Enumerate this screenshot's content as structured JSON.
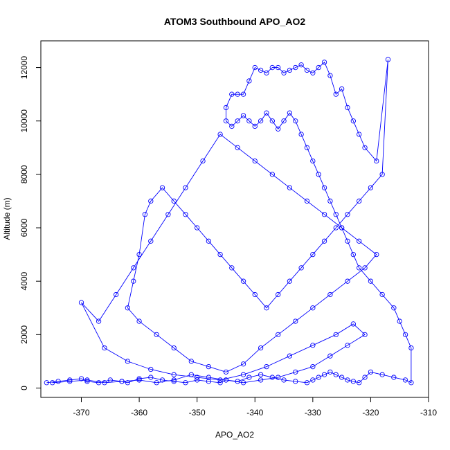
{
  "chart_data": {
    "type": "line",
    "title": "ATOM3 Southbound APO_AO2",
    "xlabel": "APO_AO2",
    "ylabel": "Altitude (m)",
    "xlim": [
      -377,
      -310
    ],
    "ylim": [
      -350,
      13000
    ],
    "x_ticks": [
      -370,
      -360,
      -350,
      -340,
      -330,
      -320,
      -310
    ],
    "y_ticks": [
      0,
      2000,
      4000,
      6000,
      8000,
      10000,
      12000
    ],
    "grid": false,
    "markers": "open-circle",
    "series": [
      {
        "color": "#0000ff",
        "x": [
          -376,
          -374,
          -372,
          -370,
          -369,
          -367,
          -365,
          -363,
          -362,
          -360,
          -358,
          -356,
          -354,
          -352,
          -350,
          -348,
          -346,
          -345,
          -343,
          -341,
          -339,
          -337,
          -335,
          -333,
          -331,
          -330,
          -329,
          -328,
          -327,
          -326,
          -325,
          -324,
          -323,
          -322,
          -321,
          -320,
          -318,
          -316,
          -314,
          -313,
          -313,
          -314,
          -315,
          -316,
          -318,
          -320,
          -322,
          -323,
          -324,
          -325,
          -326,
          -327,
          -328,
          -329,
          -330,
          -331,
          -332,
          -333,
          -334,
          -335,
          -336,
          -337,
          -338,
          -339,
          -340,
          -341,
          -342,
          -343,
          -344,
          -345,
          -345,
          -344,
          -343,
          -342,
          -341,
          -340,
          -339,
          -338,
          -337,
          -336,
          -335,
          -334,
          -333,
          -332,
          -331,
          -330,
          -329,
          -328,
          -327,
          -326,
          -325,
          -324,
          -323,
          -322,
          -321,
          -319,
          -317,
          -318,
          -320,
          -322,
          -324,
          -326,
          -328,
          -330,
          -332,
          -334,
          -336,
          -338,
          -340,
          -342,
          -344,
          -346,
          -348,
          -350,
          -352,
          -354,
          -356,
          -358,
          -359,
          -360,
          -361,
          -362,
          -360,
          -357,
          -354,
          -351,
          -348,
          -345,
          -342,
          -339,
          -336,
          -333,
          -330,
          -327,
          -324,
          -321,
          -319,
          -322,
          -325,
          -328,
          -331,
          -334,
          -337,
          -340,
          -343,
          -346,
          -349,
          -352,
          -355,
          -358,
          -361,
          -364,
          -367,
          -370,
          -366,
          -362,
          -358,
          -354,
          -350,
          -346,
          -342,
          -338,
          -334,
          -330,
          -326,
          -323,
          -321,
          -324,
          -327,
          -330,
          -333,
          -336,
          -339,
          -342,
          -345,
          -348,
          -351,
          -354,
          -357,
          -360,
          -363,
          -366,
          -369,
          -372,
          -375
        ],
        "y": [
          200,
          250,
          300,
          350,
          250,
          200,
          300,
          250,
          200,
          350,
          400,
          300,
          250,
          200,
          300,
          250,
          200,
          300,
          250,
          400,
          500,
          400,
          300,
          250,
          200,
          300,
          400,
          500,
          600,
          500,
          400,
          300,
          250,
          200,
          400,
          600,
          500,
          400,
          300,
          200,
          1500,
          2000,
          2500,
          3000,
          3500,
          4000,
          4500,
          5000,
          5500,
          6000,
          6500,
          7000,
          7500,
          8000,
          8500,
          9000,
          9500,
          10000,
          10300,
          10000,
          9700,
          10000,
          10300,
          10000,
          9800,
          10000,
          10200,
          10000,
          9800,
          10000,
          10500,
          11000,
          11000,
          11000,
          11500,
          12000,
          11900,
          11800,
          12000,
          12000,
          11800,
          11900,
          12000,
          12100,
          11900,
          11800,
          12000,
          12200,
          11700,
          11000,
          11200,
          10500,
          10000,
          9500,
          9000,
          8500,
          12300,
          8000,
          7500,
          7000,
          6500,
          6000,
          5500,
          5000,
          4500,
          4000,
          3500,
          3000,
          3500,
          4000,
          4500,
          5000,
          5500,
          6000,
          6500,
          7000,
          7500,
          7000,
          6500,
          5000,
          4000,
          3000,
          2500,
          2000,
          1500,
          1000,
          800,
          600,
          900,
          1500,
          2000,
          2500,
          3000,
          3500,
          4000,
          4500,
          5000,
          5500,
          6000,
          6500,
          7000,
          7500,
          8000,
          8500,
          9000,
          9500,
          8500,
          7500,
          6500,
          5500,
          4500,
          3500,
          2500,
          3200,
          1500,
          1000,
          700,
          500,
          400,
          300,
          500,
          800,
          1200,
          1600,
          2000,
          2400,
          2000,
          1600,
          1200,
          800,
          600,
          400,
          300,
          200,
          300,
          400,
          500,
          300,
          200,
          300,
          250,
          200,
          300,
          250,
          200
        ]
      }
    ]
  }
}
